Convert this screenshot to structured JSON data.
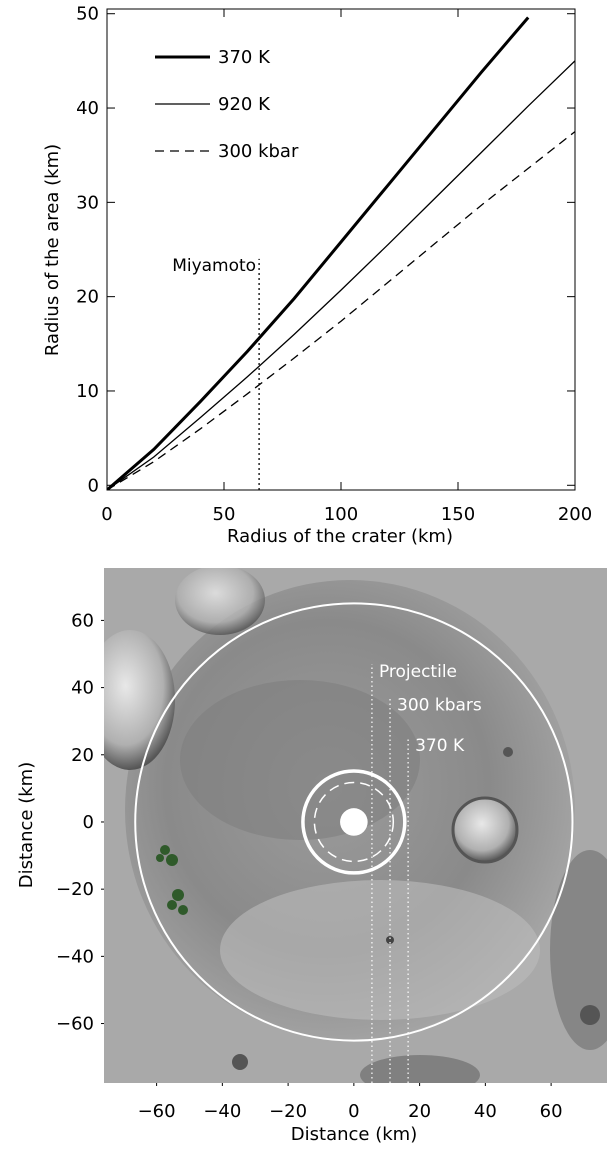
{
  "chart_data": [
    {
      "type": "line",
      "xlabel": "Radius of the crater (km)",
      "ylabel": "Radius of the area (km)",
      "x": [
        0,
        20,
        40,
        60,
        80,
        100,
        120,
        140,
        160,
        180,
        200
      ],
      "series": [
        {
          "name": "370 K",
          "color": "#000000",
          "width": 3,
          "dash": "solid",
          "values": [
            -0.5,
            3.8,
            8.9,
            14.2,
            19.8,
            25.8,
            31.8,
            37.8,
            43.8,
            49.6,
            null
          ]
        },
        {
          "name": "920 K",
          "color": "#000000",
          "width": 1.3,
          "dash": "solid",
          "values": [
            -0.5,
            3.0,
            7.2,
            11.5,
            16.0,
            20.7,
            25.5,
            30.4,
            35.3,
            40.2,
            45.0
          ]
        },
        {
          "name": "300 kbar",
          "color": "#000000",
          "width": 1.3,
          "dash": "dashed",
          "values": [
            -0.5,
            2.5,
            6.0,
            9.7,
            13.5,
            17.4,
            21.5,
            25.6,
            29.7,
            33.6,
            37.5
          ]
        }
      ],
      "reference_line": {
        "label": "Miyamoto",
        "x": 65,
        "ymax": 24
      },
      "xlim": [
        0,
        200
      ],
      "xticks": [
        0,
        50,
        100,
        150,
        200
      ],
      "ylim": [
        -0.5,
        50.5
      ],
      "yticks": [
        0,
        10,
        20,
        30,
        40,
        50
      ],
      "legend": "upper left"
    },
    {
      "type": "image",
      "xlabel": "Distance (km)",
      "ylabel": "Distance (km)",
      "xlim": [
        -76,
        77
      ],
      "xticks": [
        {
          "value": -60,
          "label": "−60"
        },
        {
          "value": -40,
          "label": "−40"
        },
        {
          "value": -20,
          "label": "−20"
        },
        0,
        20,
        40,
        60
      ],
      "ylim": [
        -77.7,
        75.6
      ],
      "yticks": [
        60,
        40,
        20,
        0,
        {
          "value": -20,
          "label": "−20"
        },
        {
          "value": -40,
          "label": "−40"
        },
        {
          "value": -60,
          "label": "−60"
        }
      ],
      "rings": [
        {
          "radius": 66.5,
          "dash": "solid",
          "width": 2
        },
        {
          "radius": 15.5,
          "dash": "solid",
          "width": 3.5
        },
        {
          "radius": 12,
          "dash": "dashed",
          "width": 1.5
        }
      ],
      "disk_radius": 4.2,
      "annotations": [
        "Projectile",
        "300 kbars",
        "370 K"
      ],
      "marker_lines": [
        5.5,
        11,
        16.5
      ],
      "marker_tops": [
        47,
        37,
        25
      ]
    }
  ]
}
